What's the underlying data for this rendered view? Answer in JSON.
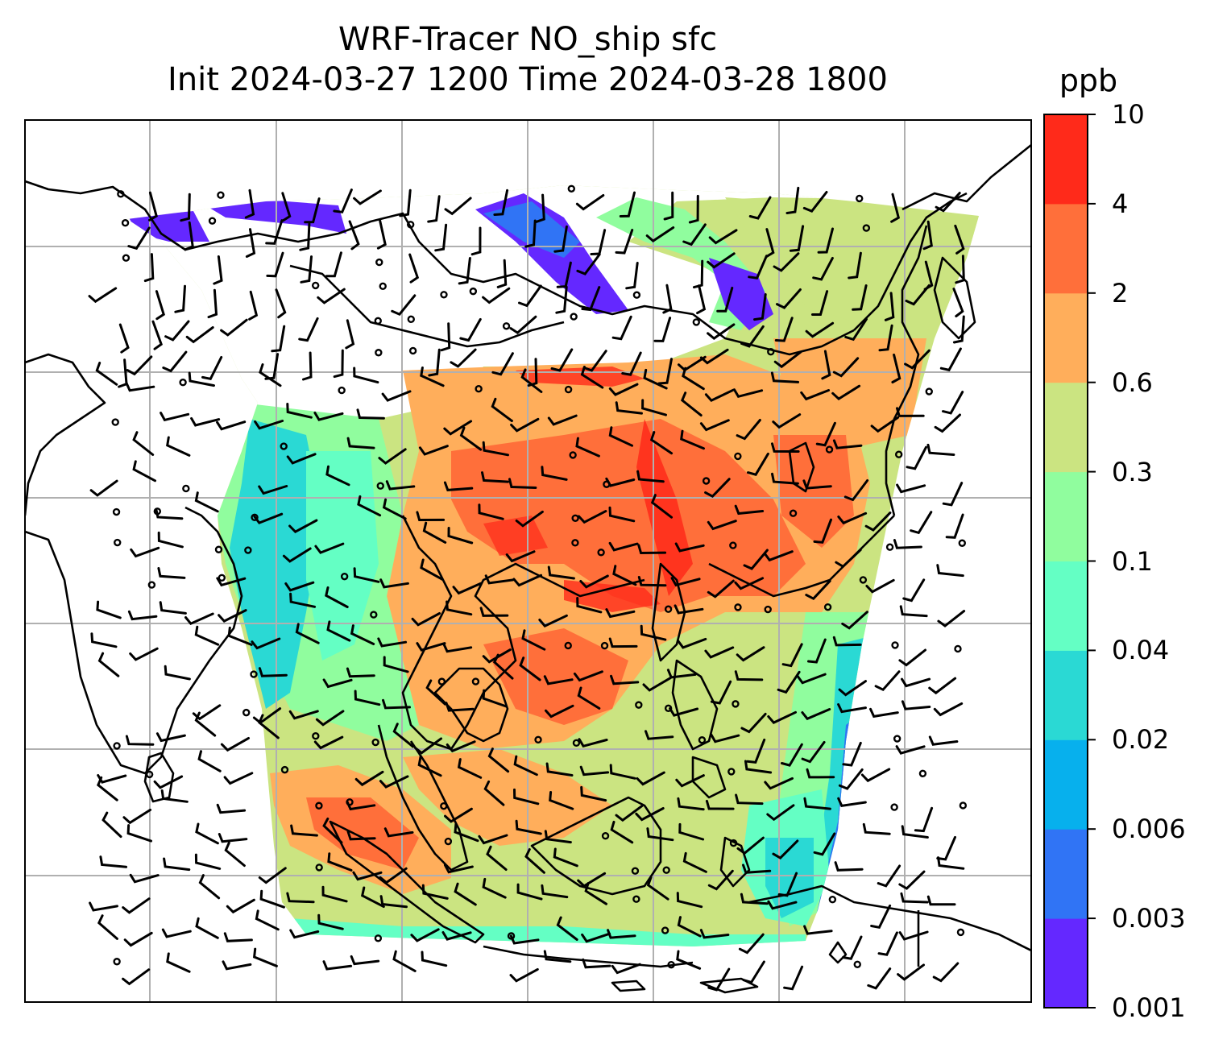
{
  "title": {
    "line1": "WRF-Tracer NO_ship sfc",
    "line2": "Init 2024-03-27 1200 Time 2024-03-28 1800"
  },
  "colorbar": {
    "unit": "ppb",
    "levels": [
      "0.001",
      "0.003",
      "0.006",
      "0.02",
      "0.04",
      "0.1",
      "0.3",
      "0.6",
      "2",
      "4",
      "10"
    ],
    "colors": [
      "#6428ff",
      "#3074f5",
      "#07b0ed",
      "#2ad9d4",
      "#64ffc4",
      "#90fd9e",
      "#cbe481",
      "#ffae5b",
      "#ff6f3a",
      "#ff2a1a"
    ]
  },
  "map": {
    "projection": "lambert-conformal",
    "gridlines": true,
    "coastlines": true,
    "field": "NO_ship surface concentration",
    "wind_barbs": true
  }
}
